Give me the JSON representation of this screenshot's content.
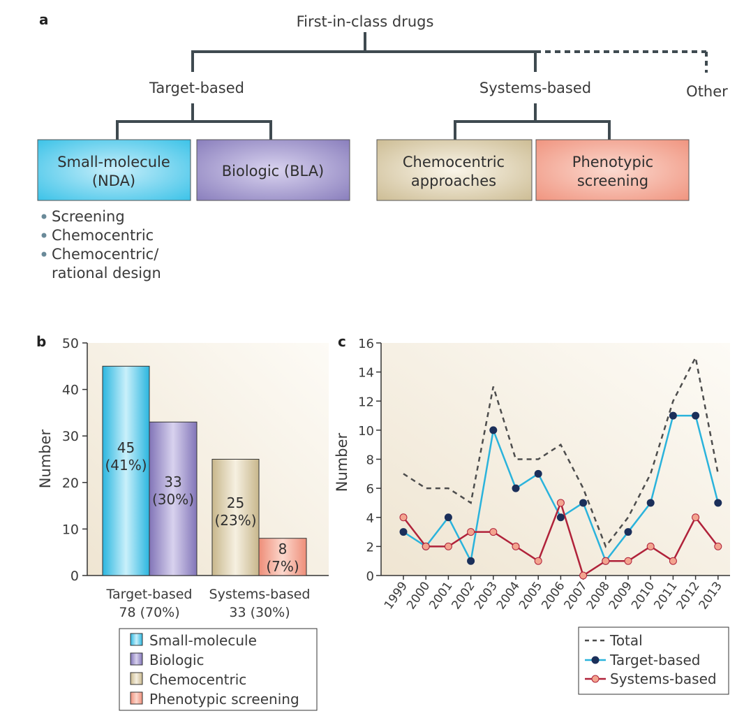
{
  "panels": {
    "a": "a",
    "b": "b",
    "c": "c"
  },
  "tree": {
    "root": "First-in-class drugs",
    "target_based": "Target-based",
    "systems_based": "Systems-based",
    "other": "Other",
    "small_molecule": [
      "Small-molecule",
      "(NDA)"
    ],
    "biologic": "Biologic (BLA)",
    "chemocentric": [
      "Chemocentric",
      "approaches"
    ],
    "phenotypic": [
      "Phenotypic",
      "screening"
    ],
    "bullets": [
      "Screening",
      "Chemocentric",
      "Chemocentric/"
    ],
    "bullet_continuation": "rational design"
  },
  "colors": {
    "small_molecule": "#3dc3e8",
    "biologic": "#8a7fbd",
    "chemocentric": "#d3c4a0",
    "phenotypic": "#f39c87",
    "total": "#4d4d4d",
    "target": "#2ab3dc",
    "systems": "#b0223a",
    "tree_line": "#3f4a50"
  },
  "chart_data": [
    {
      "type": "bar",
      "ylabel": "Number",
      "ylim": [
        0,
        50
      ],
      "yticks": [
        0,
        10,
        20,
        30,
        40,
        50
      ],
      "groups": [
        {
          "label": "Target-based",
          "sublabel": "78 (70%)"
        },
        {
          "label": "Systems-based",
          "sublabel": "33 (30%)"
        }
      ],
      "bars": [
        {
          "series": "Small-molecule",
          "group": 0,
          "value": 45,
          "label": "45",
          "pct": "(41%)"
        },
        {
          "series": "Biologic",
          "group": 0,
          "value": 33,
          "label": "33",
          "pct": "(30%)"
        },
        {
          "series": "Chemocentric",
          "group": 1,
          "value": 25,
          "label": "25",
          "pct": "(23%)"
        },
        {
          "series": "Phenotypic screening",
          "group": 1,
          "value": 8,
          "label": "8",
          "pct": "(7%)"
        }
      ],
      "legend": [
        "Small-molecule",
        "Biologic",
        "Chemocentric",
        "Phenotypic screening"
      ]
    },
    {
      "type": "line",
      "ylabel": "Number",
      "ylim": [
        0,
        16
      ],
      "yticks": [
        0,
        2,
        4,
        6,
        8,
        10,
        12,
        14,
        16
      ],
      "x": [
        "1999",
        "2000",
        "2001",
        "2002",
        "2003",
        "2004",
        "2005",
        "2006",
        "2007",
        "2008",
        "2009",
        "2010",
        "2011",
        "2012",
        "2013"
      ],
      "series": [
        {
          "name": "Total",
          "style": "dashed",
          "values": [
            7,
            6,
            6,
            5,
            13,
            8,
            8,
            9,
            6,
            2,
            4,
            7,
            12,
            15,
            7
          ]
        },
        {
          "name": "Target-based",
          "style": "markers",
          "values": [
            3,
            2,
            4,
            1,
            10,
            6,
            7,
            4,
            5,
            1,
            3,
            5,
            11,
            11,
            5
          ]
        },
        {
          "name": "Systems-based",
          "style": "markers",
          "values": [
            4,
            2,
            2,
            3,
            3,
            2,
            1,
            5,
            0,
            1,
            1,
            2,
            1,
            4,
            2
          ]
        }
      ],
      "legend": [
        "Total",
        "Target-based",
        "Systems-based"
      ]
    }
  ]
}
